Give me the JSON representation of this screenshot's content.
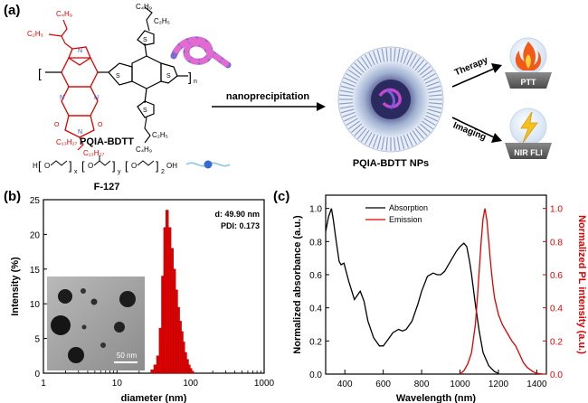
{
  "panel_a": {
    "label": "(a)",
    "polymer_name": "PQIA-BDTT",
    "surfactant_name": "F-127",
    "process_label": "nanoprecipitation",
    "nanoparticle_label": "PQIA-BDTT NPs",
    "therapy_label": "Therapy",
    "imaging_label": "Imaging",
    "ptt_label": "PTT",
    "nirfli_label": "NIR FLI",
    "chem_labels": {
      "c4h9": "C₄H₉",
      "c2h5": "C₂H₅",
      "c6h13": "C₆H₁₃",
      "c13h27": "C₁₃H₂₇",
      "o": "O",
      "n": "N",
      "s": "S",
      "h": "H",
      "oh": "OH",
      "x": "x",
      "y": "y",
      "sub_n": "n",
      "sub_2": "2"
    }
  },
  "panel_b": {
    "label": "(b)"
  },
  "panel_c": {
    "label": "(c)"
  },
  "colors": {
    "red": "#e00000",
    "black": "#000000",
    "blue": "#3a4fb8"
  },
  "chart_data": [
    {
      "type": "bar",
      "xlabel": "diameter (nm)",
      "ylabel": "Intensity (%)",
      "x_scale": "log",
      "xlim": [
        1,
        1000
      ],
      "ylim": [
        0,
        25
      ],
      "x_ticks": [
        "1",
        "10",
        "100",
        "1000"
      ],
      "y_ticks": [
        "0",
        "5",
        "10",
        "15",
        "20",
        "25"
      ],
      "annotations": [
        "d: 49.90 nm",
        "PDI: 0.173"
      ],
      "scale_bar_label": "50 nm",
      "bin_centers": [
        30,
        33,
        36,
        39,
        42,
        45,
        48,
        52,
        56,
        60,
        64,
        68,
        72,
        76,
        80,
        85,
        90,
        95,
        100,
        106
      ],
      "values": [
        0.5,
        1.2,
        2.5,
        6.5,
        14.0,
        21.0,
        23.5,
        21.0,
        18.0,
        15.0,
        12.0,
        9.5,
        7.5,
        6.0,
        4.5,
        3.0,
        2.0,
        1.2,
        0.7,
        0.3
      ],
      "bar_color": "#e00000"
    },
    {
      "type": "line",
      "xlabel": "Wavelength (nm)",
      "ylabel": "Normalized absorbance (a.u.)",
      "ylabel_right": "Normalized PL intensity (a.u.)",
      "xlim": [
        300,
        1450
      ],
      "ylim": [
        0,
        1.08
      ],
      "x_ticks": [
        "400",
        "600",
        "800",
        "1000",
        "1200",
        "1400"
      ],
      "y_ticks": [
        "0.0",
        "0.2",
        "0.4",
        "0.6",
        "0.8",
        "1.0"
      ],
      "series": [
        {
          "name": "Absorption",
          "color": "#000000",
          "x": [
            300,
            315,
            330,
            340,
            355,
            370,
            380,
            395,
            420,
            450,
            480,
            500,
            520,
            550,
            580,
            600,
            620,
            650,
            680,
            700,
            720,
            750,
            780,
            800,
            830,
            860,
            880,
            900,
            920,
            950,
            980,
            1000,
            1020,
            1035,
            1050,
            1060,
            1080,
            1100,
            1120,
            1150,
            1180,
            1200
          ],
          "values": [
            0.86,
            0.95,
            1.0,
            0.93,
            0.8,
            0.68,
            0.66,
            0.67,
            0.56,
            0.45,
            0.5,
            0.44,
            0.32,
            0.22,
            0.17,
            0.17,
            0.2,
            0.25,
            0.27,
            0.26,
            0.27,
            0.32,
            0.42,
            0.5,
            0.59,
            0.61,
            0.6,
            0.6,
            0.62,
            0.68,
            0.74,
            0.77,
            0.79,
            0.77,
            0.68,
            0.6,
            0.42,
            0.26,
            0.13,
            0.05,
            0.015,
            0.005
          ]
        },
        {
          "name": "Emission",
          "color": "#e00000",
          "x": [
            1000,
            1020,
            1040,
            1060,
            1080,
            1090,
            1100,
            1110,
            1120,
            1130,
            1140,
            1150,
            1160,
            1170,
            1180,
            1200,
            1220,
            1250,
            1270,
            1290,
            1310,
            1330,
            1350,
            1380,
            1400,
            1430
          ],
          "values": [
            0.0,
            0.02,
            0.06,
            0.13,
            0.3,
            0.45,
            0.62,
            0.8,
            0.94,
            1.0,
            0.93,
            0.8,
            0.66,
            0.55,
            0.46,
            0.36,
            0.3,
            0.24,
            0.2,
            0.17,
            0.12,
            0.07,
            0.04,
            0.015,
            0.005,
            0.0
          ]
        }
      ]
    }
  ]
}
